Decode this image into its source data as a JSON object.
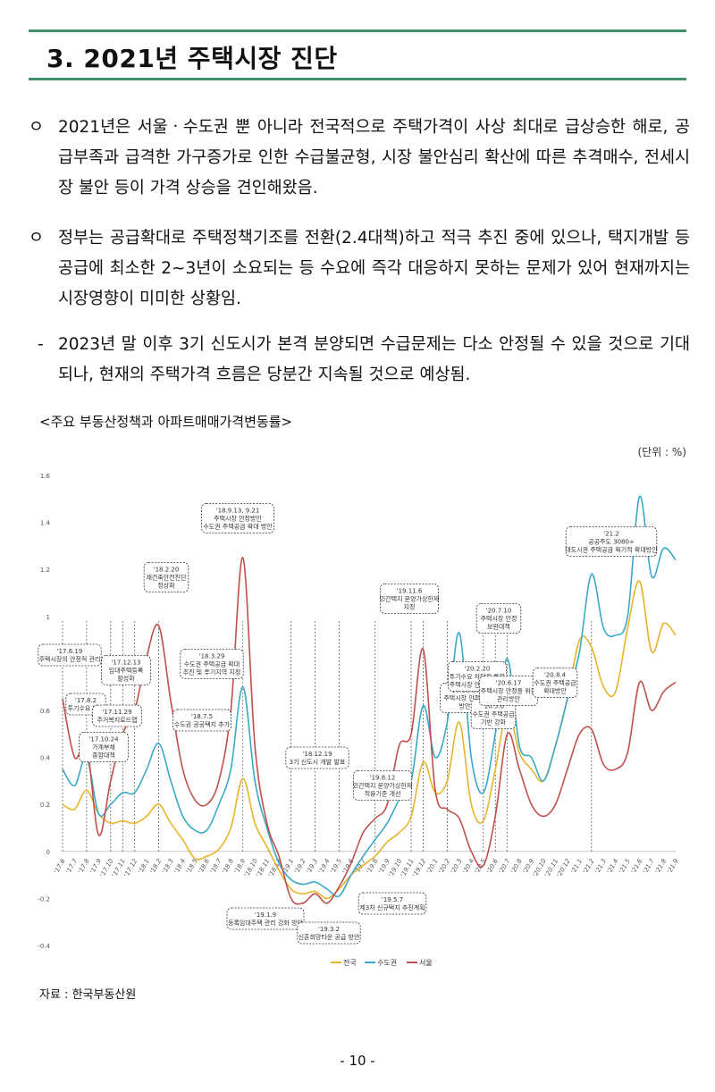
{
  "section_title": "3. 2021년 주택시장 진단",
  "paragraphs": [
    {
      "bullet": "ㅇ",
      "text": "2021년은 서울ㆍ수도권 뿐 아니라 전국적으로 주택가격이 사상 최대로 급상승한 해로, 공급부족과 급격한 가구증가로 인한 수급불균형, 시장 불안심리 확산에 따른 추격매수, 전세시장 불안 등이 가격 상승을 견인해왔음."
    },
    {
      "bullet": "ㅇ",
      "text": "정부는 공급확대로 주택정책기조를 전환(2.4대책)하고 적극 추진 중에 있으나, 택지개발 등 공급에 최소한 2~3년이 소요되는 등 수요에 즉각 대응하지 못하는 문제가 있어 현재까지는 시장영향이 미미한 상황임."
    },
    {
      "bullet": "-",
      "text": "2023년 말 이후 3기 신도시가 본격 분양되면 수급문제는 다소 안정될 수 있을 것으로 기대되나, 현재의 주택가격 흐름은 당분간 지속될 것으로 예상됨."
    }
  ],
  "chart_caption": "<주요 부동산정책과 아파트매매가격변동률>",
  "unit": "(단위 : %)",
  "source": "자료 : 한국부동산원",
  "page_number": "- 10 -",
  "chart_data": {
    "type": "line",
    "ylim": [
      -0.4,
      1.6
    ],
    "yticks": [
      "1.6",
      "1.4",
      "1.2",
      "1",
      "0.8",
      "0.6",
      "0.4",
      "0.2",
      "0",
      "-0.2",
      "-0.4"
    ],
    "categories": [
      "'17.6",
      "'17.7",
      "'17.8",
      "'17.9",
      "'17.10",
      "'17.11",
      "'17.12",
      "'18.1",
      "'18.2",
      "'18.3",
      "'18.4",
      "'18.5",
      "'18.6",
      "'18.7",
      "'18.8",
      "'18.9",
      "'18.10",
      "'18.11",
      "'18.12",
      "'19.1",
      "'19.2",
      "'19.3",
      "'19.4",
      "'19.5",
      "'19.6",
      "'19.7",
      "'19.8",
      "'19.9",
      "'19.10",
      "'19.11",
      "'19.12",
      "'20.1",
      "'20.2",
      "'20.3",
      "'20.4",
      "'20.5",
      "'20.6",
      "'20.7",
      "'20.8",
      "'20.9",
      "'20.10",
      "'20.11",
      "'20.12",
      "'21.1",
      "'21.2",
      "'21.3",
      "'21.4",
      "'21.5",
      "'21.6",
      "'21.7",
      "'21.8",
      "'21.9"
    ],
    "series": [
      {
        "name": "전국",
        "color": "#e9b42a",
        "values": [
          0.2,
          0.18,
          0.26,
          0.16,
          0.12,
          0.13,
          0.12,
          0.15,
          0.2,
          0.12,
          0.05,
          -0.03,
          -0.02,
          0.01,
          0.1,
          0.31,
          0.12,
          0.02,
          -0.08,
          -0.16,
          -0.18,
          -0.17,
          -0.2,
          -0.16,
          -0.1,
          -0.06,
          -0.02,
          0.04,
          0.08,
          0.15,
          0.38,
          0.25,
          0.3,
          0.55,
          0.2,
          0.13,
          0.35,
          0.6,
          0.42,
          0.35,
          0.3,
          0.45,
          0.65,
          0.9,
          0.87,
          0.7,
          0.68,
          0.95,
          1.15,
          0.85,
          0.97,
          0.92
        ]
      },
      {
        "name": "수도권",
        "color": "#3aa9c8",
        "values": [
          0.35,
          0.28,
          0.4,
          0.16,
          0.2,
          0.25,
          0.25,
          0.35,
          0.46,
          0.3,
          0.15,
          0.09,
          0.09,
          0.2,
          0.35,
          0.7,
          0.3,
          0.1,
          -0.05,
          -0.12,
          -0.14,
          -0.13,
          -0.16,
          -0.19,
          -0.1,
          -0.02,
          0.05,
          0.12,
          0.22,
          0.3,
          0.62,
          0.4,
          0.55,
          0.93,
          0.4,
          0.25,
          0.5,
          0.82,
          0.45,
          0.4,
          0.3,
          0.45,
          0.65,
          0.85,
          1.18,
          0.95,
          0.92,
          1.0,
          1.51,
          1.17,
          1.29,
          1.24
        ]
      },
      {
        "name": "서울",
        "color": "#c0504d",
        "values": [
          0.65,
          0.4,
          0.45,
          0.07,
          0.3,
          0.5,
          0.6,
          0.83,
          0.96,
          0.64,
          0.35,
          0.22,
          0.2,
          0.3,
          0.6,
          1.25,
          0.45,
          0.12,
          -0.02,
          -0.2,
          -0.22,
          -0.18,
          -0.22,
          -0.15,
          -0.05,
          0.08,
          0.14,
          0.2,
          0.45,
          0.5,
          0.86,
          0.26,
          0.18,
          0.14,
          0.0,
          -0.06,
          0.15,
          0.5,
          0.35,
          0.2,
          0.15,
          0.2,
          0.35,
          0.5,
          0.52,
          0.37,
          0.35,
          0.42,
          0.72,
          0.6,
          0.68,
          0.72
        ]
      }
    ],
    "annotations": [
      {
        "text": [
          "'17.6.19",
          "주택시장의 안정적 관리"
        ]
      },
      {
        "text": [
          "'17.8.2",
          "투기수요 억제"
        ]
      },
      {
        "text": [
          "'17.10.24",
          "가계부채",
          "종합대책"
        ]
      },
      {
        "text": [
          "'17.11.29",
          "주거복지로드맵"
        ]
      },
      {
        "text": [
          "'17.12.13",
          "임대주택등록",
          "활성화"
        ]
      },
      {
        "text": [
          "'18.2.20",
          "재건축안전진단",
          "정상화"
        ]
      },
      {
        "text": [
          "'18.3.29",
          "수도권 주택공급 확대",
          "추진 및 투기지역 지정"
        ]
      },
      {
        "text": [
          "'18.7.5",
          "수도권 공공택지 추가"
        ]
      },
      {
        "text": [
          "'18.9.13, 9.21",
          "주택시장 안정방안",
          "수도권 주택공급 확대 방안"
        ]
      },
      {
        "text": [
          "'18.12.19",
          "3기 신도시 개발 발표"
        ]
      },
      {
        "text": [
          "'19.1.9",
          "등록임대주택 관리 강화 방안"
        ]
      },
      {
        "text": [
          "'19.3.2",
          "신혼희망타운 공급 방안"
        ]
      },
      {
        "text": [
          "'19.5.7",
          "제3차 신규택지 추진계획"
        ]
      },
      {
        "text": [
          "'19.8.12",
          "민간택지 분양가상한제",
          "적용기준 개선"
        ]
      },
      {
        "text": [
          "'19.11.6",
          "민간택지 분양가상한제",
          "지정"
        ]
      },
      {
        "text": [
          "'19.12.16",
          "주택시장 안정화",
          "방안"
        ]
      },
      {
        "text": [
          "'20.2.20",
          "투기수요 차단을 통한",
          "주택시장 안정적 관리"
        ]
      },
      {
        "text": [
          "'20.5.6",
          "수도권 주택공급",
          "기반 강화"
        ]
      },
      {
        "text": [
          "'20.6.17",
          "주택시장 안정을 위한",
          "관리방안"
        ]
      },
      {
        "text": [
          "'20.7.10",
          "주택시장 안정",
          "보완대책"
        ]
      },
      {
        "text": [
          "'20.8.4",
          "수도권 주택공급",
          "확대방안"
        ]
      },
      {
        "text": [
          "'21.2",
          "공공주도 3080+",
          "대도시권 주택공급 획기적 확대방안"
        ]
      }
    ]
  }
}
